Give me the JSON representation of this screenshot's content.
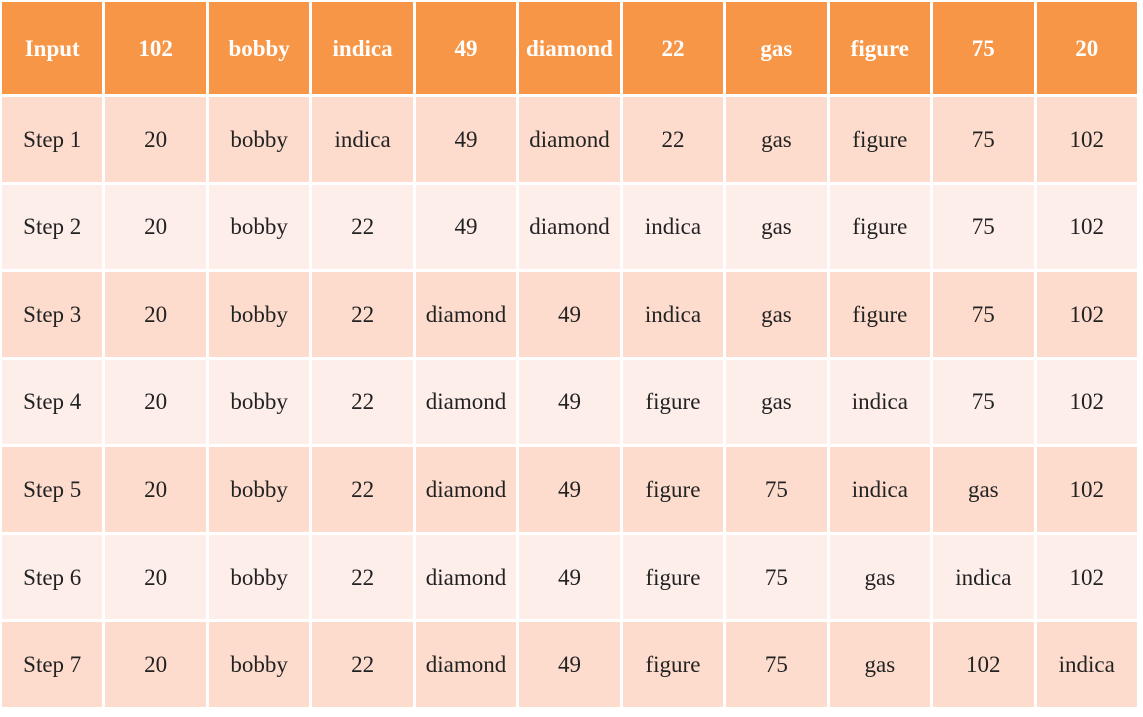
{
  "table": {
    "headers": [
      "Input",
      "102",
      "bobby",
      "indica",
      "49",
      "diamond",
      "22",
      "gas",
      "figure",
      "75",
      "20"
    ],
    "rows": [
      [
        "Step 1",
        "20",
        "bobby",
        "indica",
        "49",
        "diamond",
        "22",
        "gas",
        "figure",
        "75",
        "102"
      ],
      [
        "Step 2",
        "20",
        "bobby",
        "22",
        "49",
        "diamond",
        "indica",
        "gas",
        "figure",
        "75",
        "102"
      ],
      [
        "Step 3",
        "20",
        "bobby",
        "22",
        "diamond",
        "49",
        "indica",
        "gas",
        "figure",
        "75",
        "102"
      ],
      [
        "Step 4",
        "20",
        "bobby",
        "22",
        "diamond",
        "49",
        "figure",
        "gas",
        "indica",
        "75",
        "102"
      ],
      [
        "Step 5",
        "20",
        "bobby",
        "22",
        "diamond",
        "49",
        "figure",
        "75",
        "indica",
        "gas",
        "102"
      ],
      [
        "Step 6",
        "20",
        "bobby",
        "22",
        "diamond",
        "49",
        "figure",
        "75",
        "gas",
        "indica",
        "102"
      ],
      [
        "Step 7",
        "20",
        "bobby",
        "22",
        "diamond",
        "49",
        "figure",
        "75",
        "gas",
        "102",
        "indica"
      ]
    ]
  },
  "colors": {
    "header_bg": "#f79646",
    "row_odd_bg": "#fddccd",
    "row_even_bg": "#feeee9"
  }
}
